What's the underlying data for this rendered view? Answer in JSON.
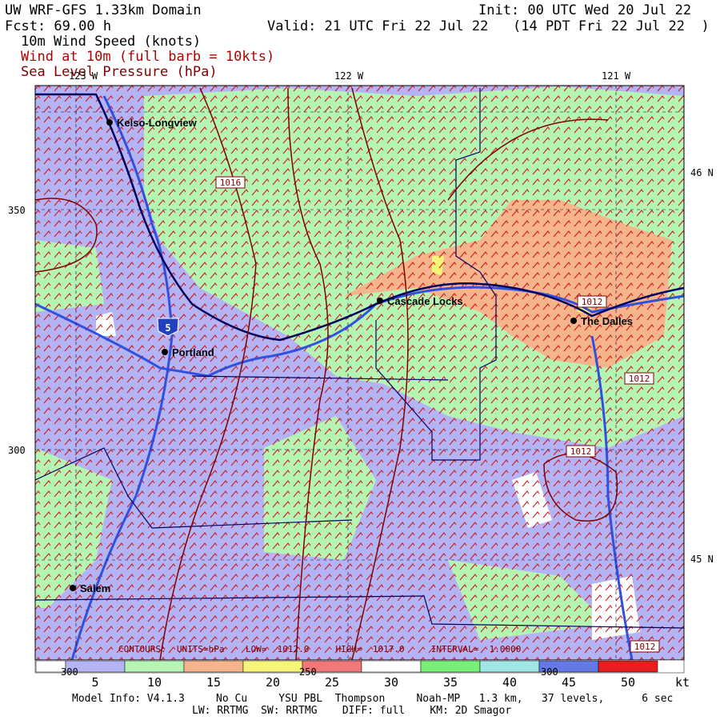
{
  "header": {
    "title": "UW WRF-GFS 1.33km Domain",
    "init": "Init: 00 UTC Wed 20 Jul 22",
    "forecast": "Fcst:   69.00 h",
    "valid": "Valid: 21 UTC Fri 22 Jul 22   (14 PDT Fri 22 Jul 22  )",
    "fields": [
      "10m Wind Speed (knots)",
      "Wind at 10m (full barb = 10kts)",
      "Sea Level Pressure (hPa)"
    ]
  },
  "map": {
    "longitudes": [
      "123 W",
      "122 W",
      "121 W"
    ],
    "latitudes": [
      "46 N",
      "45 N"
    ],
    "grid_y_labels": [
      "350",
      "300"
    ],
    "grid_x_labels": [
      "300",
      "250",
      "300"
    ],
    "cities": [
      "Kelso-Longview",
      "Cascade Locks",
      "Portland",
      "The Dalles",
      "Salem"
    ],
    "interstate": "5",
    "isobar_labels": [
      "1016",
      "1012",
      "1012",
      "1012",
      "1012"
    ],
    "contour_info": "CONTOURS:  UNITS=hPa    LOW=  1012.0     HIGH=  1017.0     INTERVAL=  1.0000"
  },
  "colorbar": {
    "bins": [
      0,
      2.5,
      7.5,
      12.5,
      17.5,
      22.5,
      27.5,
      32.5,
      37.5,
      42.5,
      47.5,
      52.5
    ],
    "colors": [
      "#ffffff",
      "#b4b4f5",
      "#b4f5b4",
      "#f5b48c",
      "#f5f578",
      "#f07878",
      "#ffffff",
      "#78f078",
      "#a0e6e6",
      "#6478e6",
      "#e61e1e"
    ],
    "ticks": [
      5,
      10,
      15,
      20,
      25,
      30,
      35,
      40,
      45,
      50
    ],
    "unit": "kt"
  },
  "footer": {
    "model_info": "Model Info: V4.1.3     No Cu     YSU PBL  Thompson     Noah-MP   1.3 km,   37 levels,      6 sec",
    "model_info2": "LW: RRTMG  SW: RRTMG    DIFF: full    KM: 2D Smagor"
  }
}
